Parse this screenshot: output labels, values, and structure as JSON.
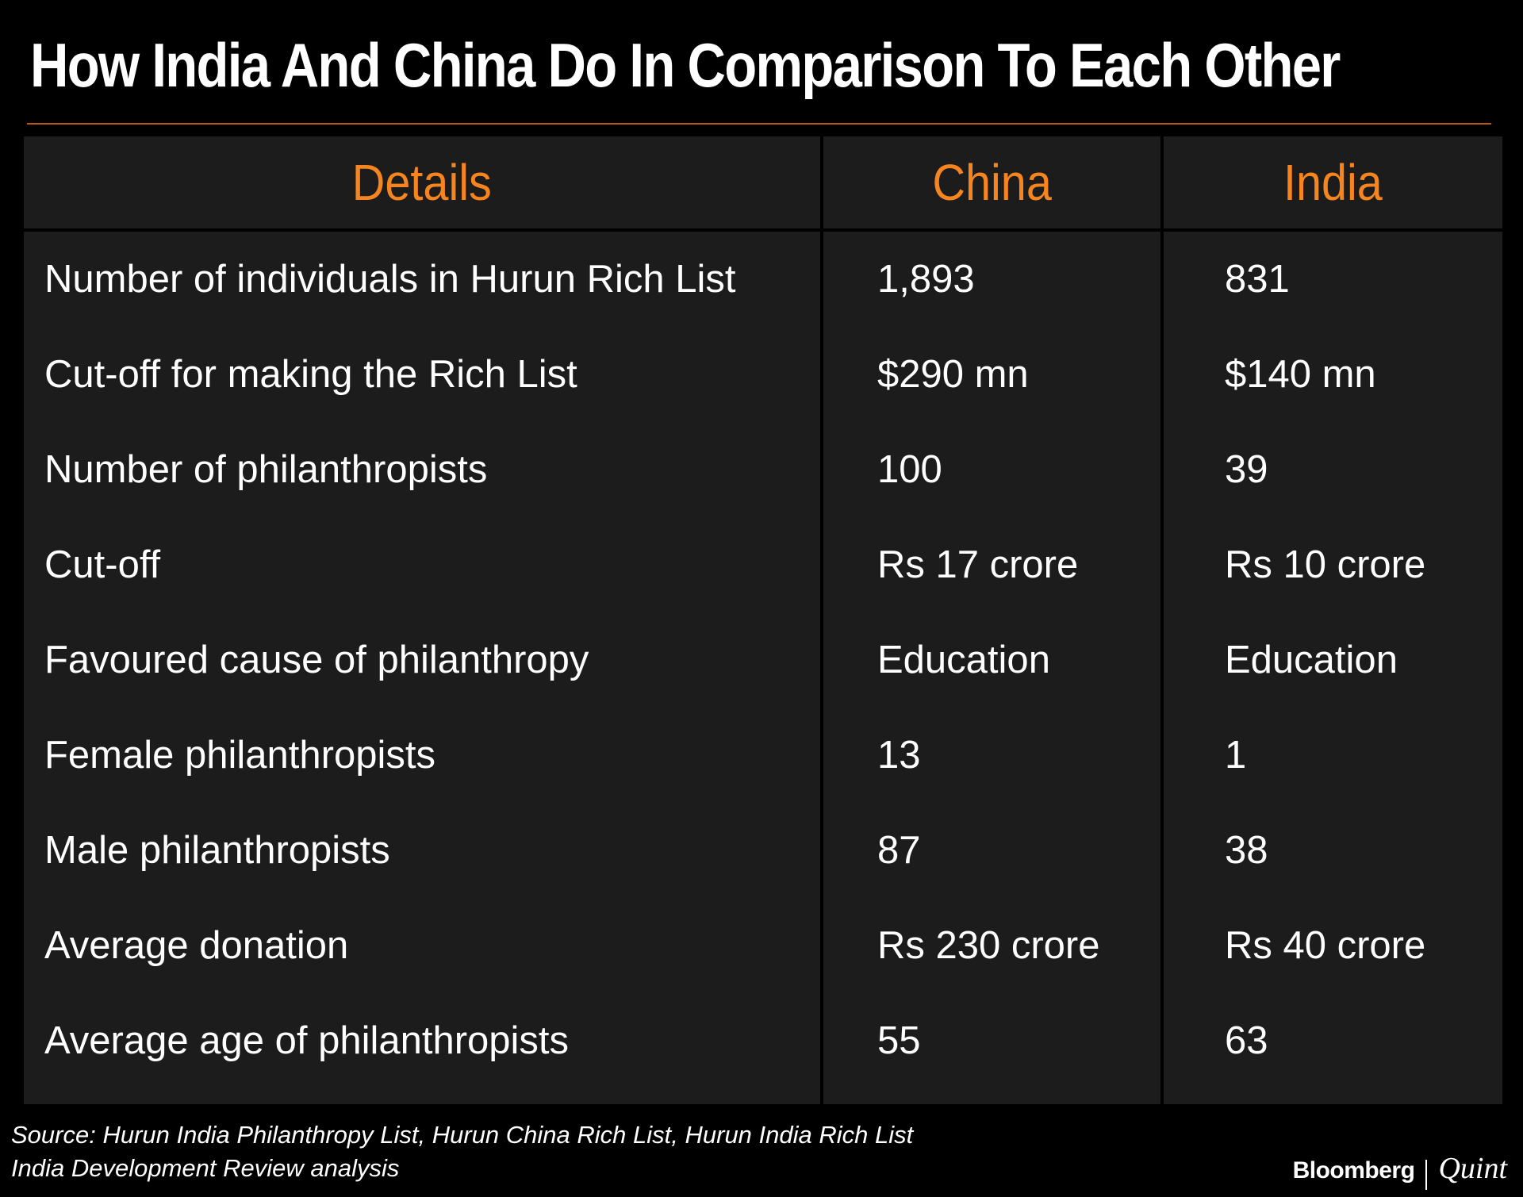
{
  "title": "How India And China Do In Comparison To Each Other",
  "colors": {
    "background": "#000000",
    "table_background": "#1c1c1c",
    "header_text": "#f7851f",
    "rule": "#b8580c",
    "body_text": "#ffffff"
  },
  "chart_data": {
    "type": "table",
    "columns": [
      "Details",
      "China",
      "India"
    ],
    "rows": [
      [
        "Number of individuals in Hurun Rich List",
        "1,893",
        "831"
      ],
      [
        "Cut-off for making the Rich List",
        "$290 mn",
        "$140 mn"
      ],
      [
        "Number of philanthropists",
        "100",
        "39"
      ],
      [
        "Cut-off",
        "Rs 17 crore",
        "Rs 10 crore"
      ],
      [
        "Favoured cause of philanthropy",
        "Education",
        "Education"
      ],
      [
        "Female philanthropists",
        "13",
        "1"
      ],
      [
        "Male philanthropists",
        "87",
        "38"
      ],
      [
        "Average donation",
        "Rs 230 crore",
        "Rs 40 crore"
      ],
      [
        "Average age of philanthropists",
        "55",
        "63"
      ]
    ]
  },
  "source_lines": [
    "Source: Hurun India Philanthropy List, Hurun China Rich List, Hurun India Rich List",
    "India Development Review analysis"
  ],
  "brand": {
    "primary": "Bloomberg",
    "secondary": "Quint"
  }
}
